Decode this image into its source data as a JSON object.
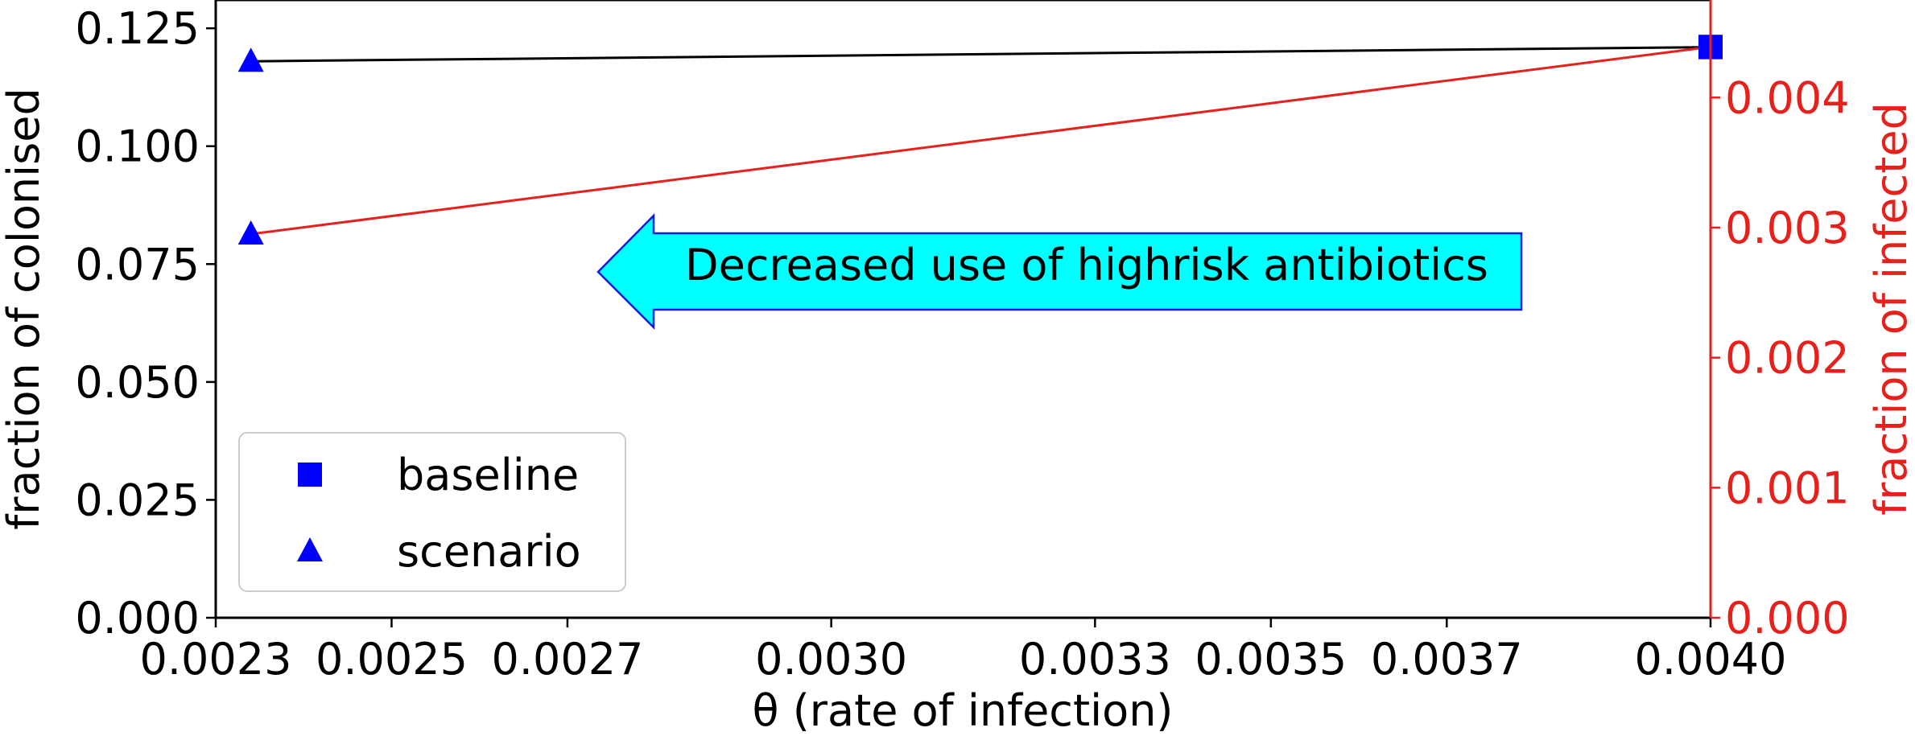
{
  "chart_data": {
    "type": "line",
    "xlabel": "θ (rate of infection)",
    "ylabel_left": "fraction of colonised",
    "ylabel_right": "fraction of infected",
    "xlim": [
      0.0023,
      0.004
    ],
    "ylim_left": [
      0.0,
      0.131
    ],
    "ylim_right": [
      0.0,
      0.00475
    ],
    "x_ticks": [
      0.0023,
      0.0025,
      0.0027,
      0.003,
      0.0033,
      0.0035,
      0.0037,
      0.004
    ],
    "x_tick_labels": [
      "0.0023",
      "0.0025",
      "0.0027",
      "0.0030",
      "0.0033",
      "0.0035",
      "0.0037",
      "0.0040"
    ],
    "y_left_ticks": [
      0.0,
      0.025,
      0.05,
      0.075,
      0.1,
      0.125
    ],
    "y_left_tick_labels": [
      "0.000",
      "0.025",
      "0.050",
      "0.075",
      "0.100",
      "0.125"
    ],
    "y_right_ticks": [
      0.0,
      0.001,
      0.002,
      0.003,
      0.004
    ],
    "y_right_tick_labels": [
      "0.000",
      "0.001",
      "0.002",
      "0.003",
      "0.004"
    ],
    "grid": false,
    "legend_position": "lower-left",
    "legend": [
      {
        "label": "baseline",
        "marker": "square"
      },
      {
        "label": "scenario",
        "marker": "triangle"
      }
    ],
    "series": [
      {
        "axis": "left",
        "color": "#000000",
        "points": [
          {
            "x": 0.00234,
            "y": 0.118,
            "marker": "triangle"
          },
          {
            "x": 0.004,
            "y": 0.121,
            "marker": "square"
          }
        ]
      },
      {
        "axis": "right",
        "color": "#e8201c",
        "points": [
          {
            "x": 0.00234,
            "y": 0.00295,
            "marker": "triangle"
          },
          {
            "x": 0.004,
            "y": 0.00439,
            "marker": "square"
          }
        ]
      }
    ],
    "annotation": {
      "text": "Decreased use of highrisk antibiotics",
      "fill": "#00ffff",
      "edge": "#1a1adc",
      "direction": "left"
    },
    "marker_color": "#0000ff",
    "left_axis_color": "#000000",
    "right_axis_color": "#e8201c"
  }
}
